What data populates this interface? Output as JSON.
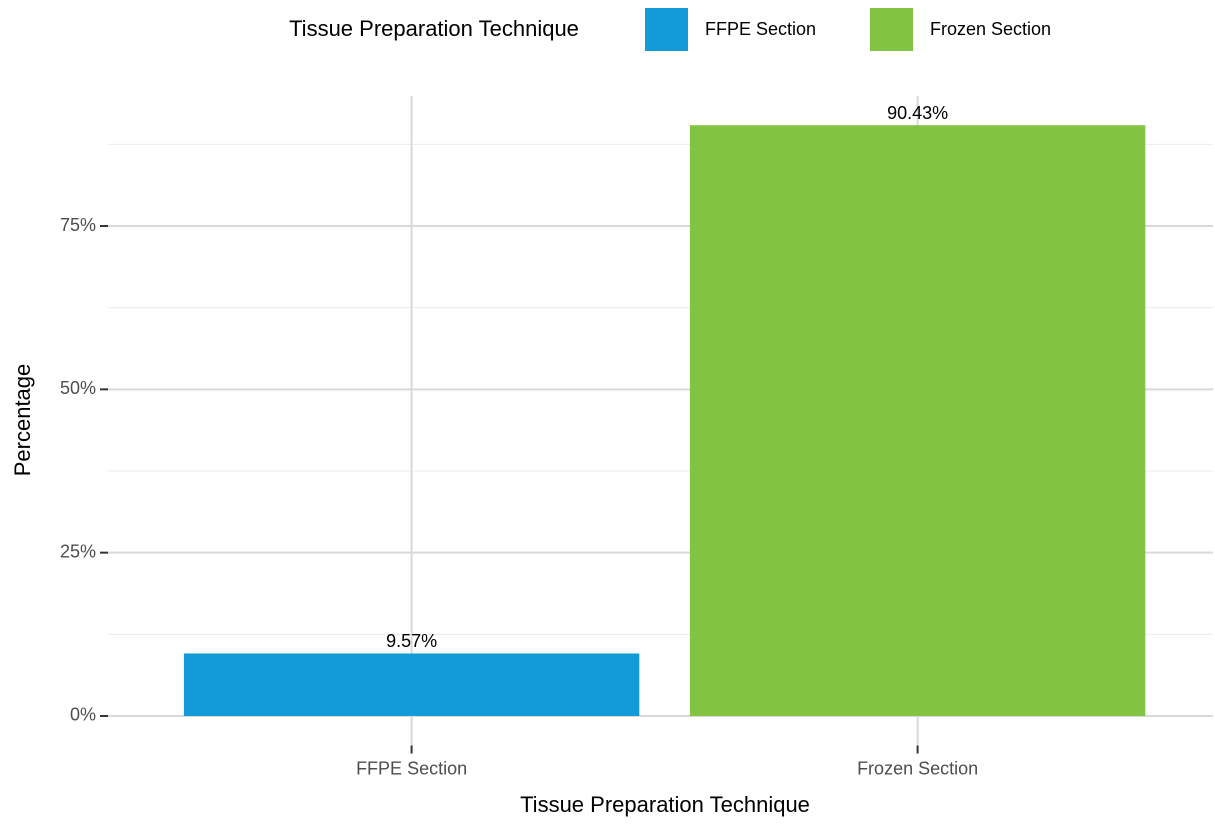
{
  "chart_data": {
    "type": "bar",
    "x_label": "Tissue Preparation Technique",
    "y_label": "Percentage",
    "legend": {
      "title": "Tissue Preparation Technique",
      "position": "top"
    },
    "categories": [
      "FFPE Section",
      "Frozen Section"
    ],
    "values": [
      9.57,
      90.43
    ],
    "value_labels": [
      "9.57%",
      "90.43%"
    ],
    "colors": [
      "#129bd8",
      "#82c341"
    ],
    "ylim": [
      -4.52,
      94.95
    ],
    "yticks": [
      {
        "value": 0,
        "label": "0%"
      },
      {
        "value": 25,
        "label": "25%"
      },
      {
        "value": 50,
        "label": "50%"
      },
      {
        "value": 75,
        "label": "75%"
      }
    ],
    "minor_yticks": [
      12.5,
      37.5,
      62.5,
      87.5
    ],
    "grid": true
  }
}
